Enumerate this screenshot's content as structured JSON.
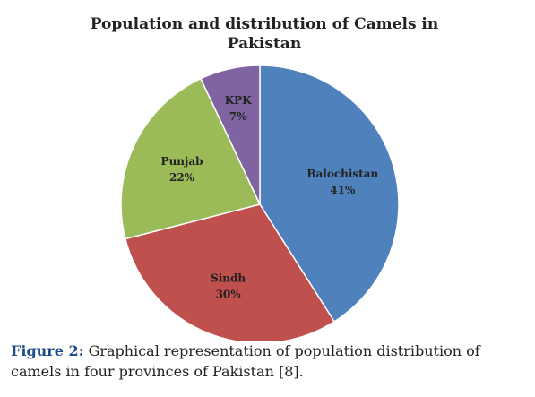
{
  "chart_data": {
    "type": "pie",
    "title": "Population and distribution of Camels in Pakistan",
    "slices": [
      {
        "label": "Balochistan",
        "value": 41,
        "value_label": "41%",
        "color": "#4f81bd"
      },
      {
        "label": "Sindh",
        "value": 30,
        "value_label": "30%",
        "color": "#c0504d"
      },
      {
        "label": "Punjab",
        "value": 22,
        "value_label": "22%",
        "color": "#9bbb59"
      },
      {
        "label": "KPK",
        "value": 7,
        "value_label": "7%",
        "color": "#8064a2"
      }
    ],
    "legend": "none",
    "data_labels": "inside"
  },
  "caption": {
    "label": "Figure 2:",
    "text": "Graphical representation of population distribution of camels in four provinces of Pakistan [8]."
  }
}
